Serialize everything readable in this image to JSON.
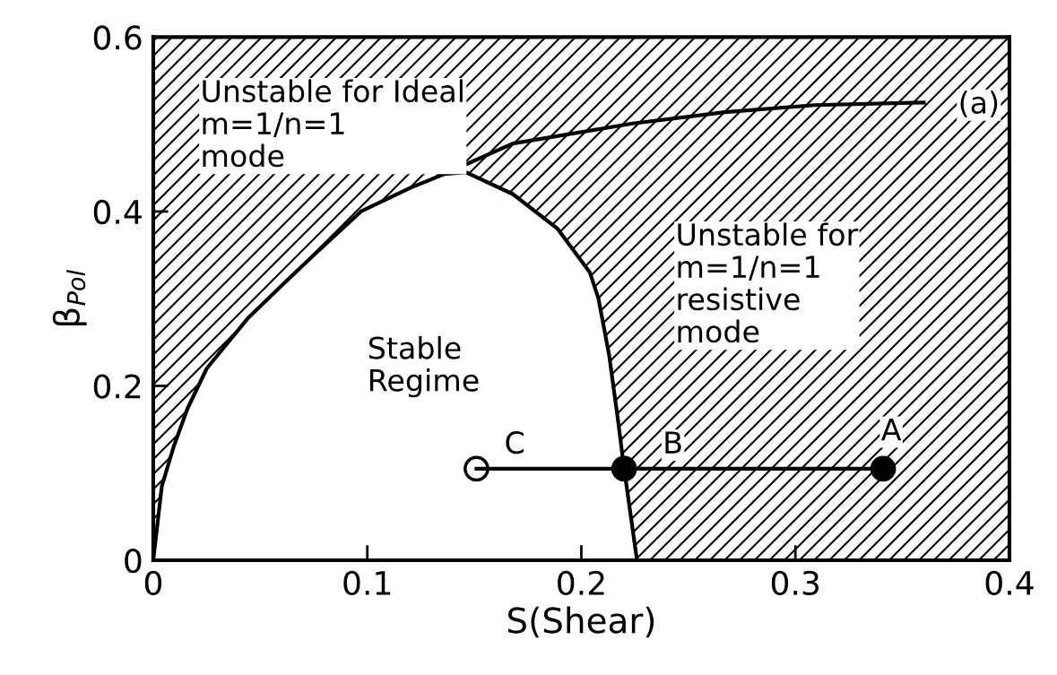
{
  "chart_data": {
    "type": "line",
    "xlabel": "S(Shear)",
    "ylabel": "β$_{Pol}$",
    "xlim": [
      0,
      0.4
    ],
    "ylim": [
      0,
      0.6
    ],
    "xticks": [
      {
        "value": 0,
        "label": "0"
      },
      0.1,
      0.2,
      0.3,
      0.4
    ],
    "yticks": [
      {
        "value": 0,
        "label": "0"
      },
      0.2,
      0.4,
      0.6
    ],
    "grid": false,
    "legend": false,
    "series": [
      {
        "type": "area",
        "color": "#000000",
        "x": [
          0,
          0.004,
          0.0095,
          0.016,
          0.025,
          0.044,
          0.06,
          0.075,
          0.097,
          0.12,
          0.136,
          0.146,
          0.168,
          0.189,
          0.204,
          0.208,
          0.213,
          0.217,
          0.22,
          0.226
        ],
        "values": [
          0,
          0.085,
          0.13,
          0.174,
          0.22,
          0.277,
          0.315,
          0.35,
          0.4,
          0.427,
          0.443,
          0.445,
          0.42,
          0.38,
          0.33,
          0.3,
          0.235,
          0.163,
          0.105,
          0
        ]
      },
      {
        "type": "line",
        "color": "#000000",
        "x": [
          0.136,
          0.168,
          0.224,
          0.267,
          0.309,
          0.36
        ],
        "values": [
          0.443,
          0.478,
          0.501,
          0.514,
          0.522,
          0.525
        ]
      },
      {
        "type": "line",
        "color": "#000000",
        "x": [
          0.151,
          0.341
        ],
        "values": [
          0.105,
          0.105
        ]
      },
      {
        "type": "scatter",
        "marker": "circle",
        "colors": [
          "#ffffff",
          "#000000",
          "#000000"
        ],
        "x": [
          0.151,
          0.22,
          0.341
        ],
        "values": [
          0.105,
          0.105,
          0.105
        ]
      }
    ],
    "annotations": [
      "Unstable for Ideal\nm=1/n=1\nmode",
      "Unstable for\nm=1/n=1\nresistive\nmode",
      "Stable\nRegime",
      "(a)",
      "C",
      "B",
      "A"
    ]
  }
}
